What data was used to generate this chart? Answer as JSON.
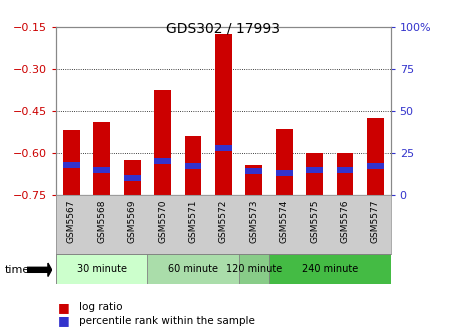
{
  "title": "GDS302 / 17993",
  "samples": [
    "GSM5567",
    "GSM5568",
    "GSM5569",
    "GSM5570",
    "GSM5571",
    "GSM5572",
    "GSM5573",
    "GSM5574",
    "GSM5575",
    "GSM5576",
    "GSM5577"
  ],
  "log_ratio": [
    -0.52,
    -0.49,
    -0.625,
    -0.375,
    -0.54,
    -0.175,
    -0.645,
    -0.515,
    -0.6,
    -0.6,
    -0.475
  ],
  "percentile": [
    18,
    15,
    10,
    20,
    17,
    28,
    14,
    13,
    15,
    15,
    17
  ],
  "bar_bottom": -0.75,
  "ylim_left": [
    -0.75,
    -0.15
  ],
  "ylim_right": [
    0,
    100
  ],
  "yticks_left": [
    -0.75,
    -0.6,
    -0.45,
    -0.3,
    -0.15
  ],
  "yticks_right": [
    0,
    25,
    50,
    75,
    100
  ],
  "ytick_labels_right": [
    "0",
    "25",
    "50",
    "75",
    "100%"
  ],
  "bar_color": "#cc0000",
  "percentile_color": "#3333cc",
  "groups": [
    {
      "label": "30 minute",
      "indices": [
        0,
        1,
        2
      ],
      "color": "#ccffcc"
    },
    {
      "label": "60 minute",
      "indices": [
        3,
        4,
        5
      ],
      "color": "#aaddaa"
    },
    {
      "label": "120 minute",
      "indices": [
        6
      ],
      "color": "#88cc88"
    },
    {
      "label": "240 minute",
      "indices": [
        7,
        8,
        9,
        10
      ],
      "color": "#44bb44"
    }
  ],
  "time_label": "time",
  "legend_items": [
    {
      "label": "log ratio",
      "color": "#cc0000"
    },
    {
      "label": "percentile rank within the sample",
      "color": "#3333cc"
    }
  ],
  "bar_width": 0.55,
  "tick_label_color_left": "#cc0000",
  "tick_label_color_right": "#3333cc",
  "grid_yticks": [
    -0.3,
    -0.45,
    -0.6
  ],
  "xtick_bg_color": "#cccccc",
  "spine_color": "#888888"
}
